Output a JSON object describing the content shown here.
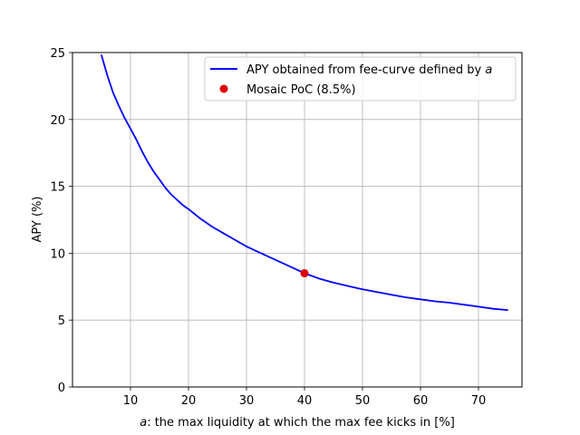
{
  "chart_data": {
    "type": "line",
    "xlabel_var": "a",
    "xlabel_rest": ": the max liquidity at which the max fee kicks in [%]",
    "ylabel": "APY (%)",
    "xlim": [
      0,
      77.5
    ],
    "ylim": [
      0,
      25
    ],
    "xticks": [
      10,
      20,
      30,
      40,
      50,
      60,
      70
    ],
    "yticks": [
      0,
      5,
      10,
      15,
      20,
      25
    ],
    "grid": true,
    "legend_position": "top-right",
    "series": [
      {
        "name_text": "APY obtained from fee-curve defined by ",
        "name_var": "a",
        "color": "#0000ff",
        "x": [
          5,
          6,
          7,
          8,
          9,
          10,
          11,
          12,
          13,
          14,
          15,
          16,
          17,
          18,
          19,
          20,
          22,
          24,
          26,
          28,
          30,
          32,
          34,
          36,
          38,
          40,
          42.5,
          45,
          47.5,
          50,
          52.5,
          55,
          57.5,
          60,
          62.5,
          65,
          67.5,
          70,
          72.5,
          75
        ],
        "y": [
          24.8,
          23.3,
          22.0,
          21.0,
          20.1,
          19.3,
          18.5,
          17.6,
          16.8,
          16.1,
          15.5,
          14.9,
          14.4,
          14.0,
          13.6,
          13.3,
          12.6,
          12.0,
          11.5,
          11.0,
          10.5,
          10.1,
          9.7,
          9.3,
          8.9,
          8.5,
          8.1,
          7.8,
          7.55,
          7.3,
          7.1,
          6.9,
          6.7,
          6.55,
          6.4,
          6.3,
          6.15,
          6.0,
          5.85,
          5.75
        ]
      }
    ],
    "points": [
      {
        "name": "Mosaic PoC (8.5%)",
        "x": 40,
        "y": 8.5,
        "color": "#dd0000"
      }
    ]
  }
}
